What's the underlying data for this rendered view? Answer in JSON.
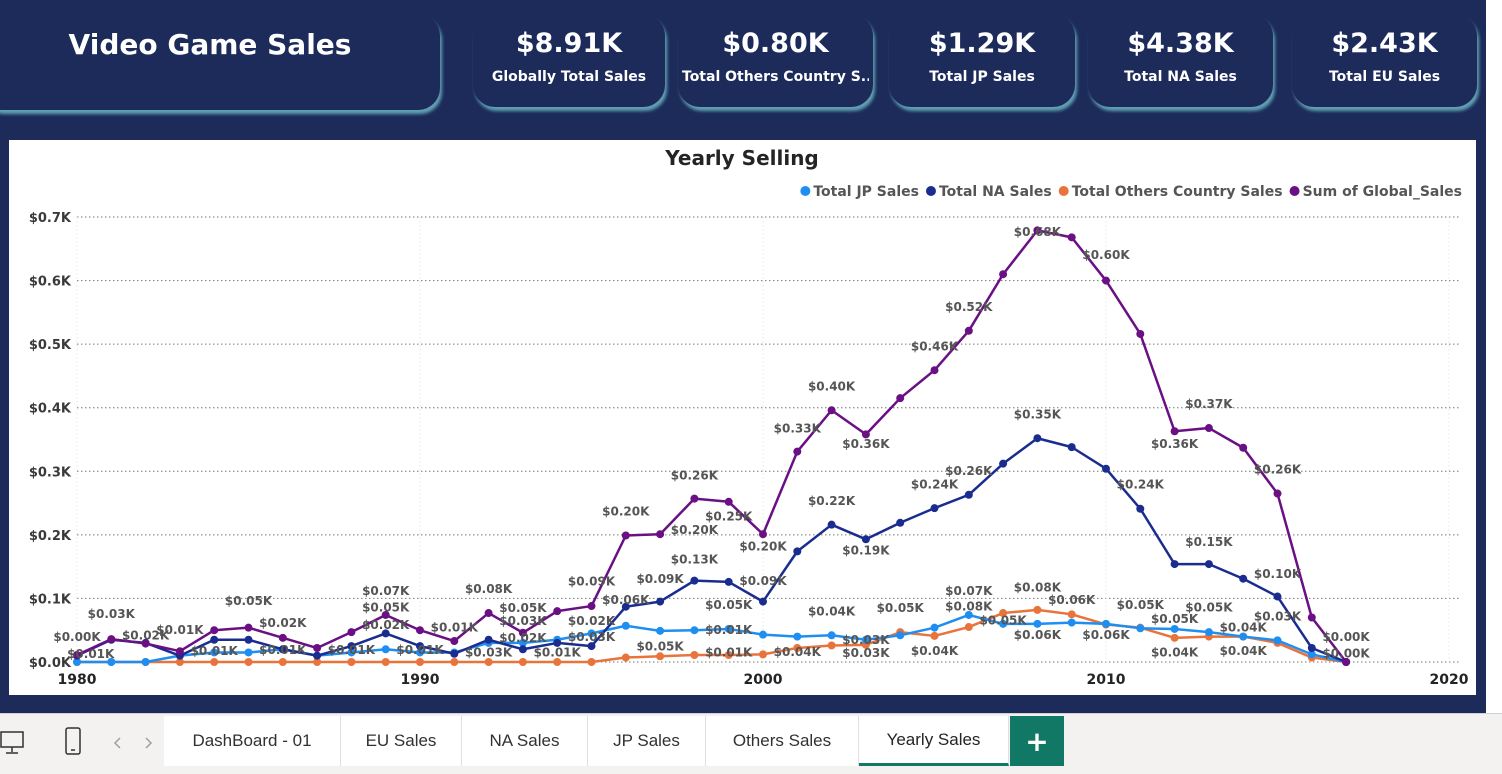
{
  "dashboard": {
    "title": "Video Game Sales",
    "kpis": [
      {
        "value": "$8.91K",
        "label": "Globally Total Sales"
      },
      {
        "value": "$0.80K",
        "label": "Total Others Country S..."
      },
      {
        "value": "$1.29K",
        "label": "Total JP Sales"
      },
      {
        "value": "$4.38K",
        "label": "Total NA Sales"
      },
      {
        "value": "$2.43K",
        "label": "Total EU Sales"
      }
    ]
  },
  "tabs": {
    "items": [
      "DashBoard - 01",
      "EU Sales",
      "NA Sales",
      "JP Sales",
      "Others Sales",
      "Yearly Sales"
    ],
    "active": "Yearly Sales",
    "add_label": "+"
  },
  "colors": {
    "jp": "#1f8ef1",
    "na": "#1a2d8f",
    "others": "#e8743b",
    "global": "#6a0f84"
  },
  "chart_data": {
    "type": "line",
    "title": "Yearly Selling",
    "xlabel": "",
    "ylabel": "",
    "xlim": [
      1980,
      2020
    ],
    "ylim": [
      0,
      0.7
    ],
    "x_ticks": [
      1980,
      1990,
      2000,
      2010,
      2020
    ],
    "y_ticks": [
      "$0.0K",
      "$0.1K",
      "$0.2K",
      "$0.3K",
      "$0.4K",
      "$0.5K",
      "$0.6K",
      "$0.7K"
    ],
    "legend_position": "top-right",
    "grid": true,
    "x": [
      1980,
      1981,
      1982,
      1983,
      1984,
      1985,
      1986,
      1987,
      1988,
      1989,
      1990,
      1991,
      1992,
      1993,
      1994,
      1995,
      1996,
      1997,
      1998,
      1999,
      2000,
      2001,
      2002,
      2003,
      2004,
      2005,
      2006,
      2007,
      2008,
      2009,
      2010,
      2011,
      2012,
      2013,
      2014,
      2015,
      2016,
      2017
    ],
    "series": [
      {
        "name": "Total JP Sales",
        "key": "jp",
        "values": [
          0.0,
          0.0,
          0.0,
          0.01,
          0.015,
          0.015,
          0.02,
          0.01,
          0.015,
          0.02,
          0.015,
          0.015,
          0.03,
          0.03,
          0.035,
          0.045,
          0.057,
          0.049,
          0.05,
          0.052,
          0.043,
          0.04,
          0.042,
          0.035,
          0.042,
          0.054,
          0.074,
          0.06,
          0.06,
          0.062,
          0.06,
          0.053,
          0.052,
          0.047,
          0.04,
          0.034,
          0.012,
          0.0
        ]
      },
      {
        "name": "Total NA Sales",
        "key": "na",
        "values": [
          0.01,
          0.035,
          0.03,
          0.01,
          0.035,
          0.035,
          0.02,
          0.01,
          0.025,
          0.045,
          0.025,
          0.013,
          0.035,
          0.02,
          0.03,
          0.025,
          0.087,
          0.095,
          0.128,
          0.126,
          0.095,
          0.174,
          0.216,
          0.193,
          0.219,
          0.242,
          0.263,
          0.312,
          0.352,
          0.338,
          0.304,
          0.241,
          0.154,
          0.154,
          0.131,
          0.103,
          0.022,
          0.0
        ]
      },
      {
        "name": "Total Others Country Sales",
        "key": "others",
        "values": [
          0.0,
          0.0,
          0.0,
          0.0,
          0.0,
          0.0,
          0.0,
          0.0,
          0.0,
          0.0,
          0.0,
          0.0,
          0.0,
          0.0,
          0.0,
          0.0,
          0.007,
          0.009,
          0.011,
          0.011,
          0.012,
          0.022,
          0.026,
          0.027,
          0.047,
          0.041,
          0.055,
          0.077,
          0.082,
          0.075,
          0.059,
          0.054,
          0.038,
          0.04,
          0.04,
          0.03,
          0.007,
          0.0
        ]
      },
      {
        "name": "Sum of Global_Sales",
        "key": "global",
        "values": [
          0.011,
          0.036,
          0.029,
          0.017,
          0.05,
          0.054,
          0.038,
          0.022,
          0.047,
          0.074,
          0.05,
          0.033,
          0.077,
          0.046,
          0.08,
          0.088,
          0.199,
          0.201,
          0.257,
          0.252,
          0.201,
          0.331,
          0.396,
          0.358,
          0.415,
          0.459,
          0.521,
          0.61,
          0.679,
          0.668,
          0.6,
          0.516,
          0.363,
          0.368,
          0.337,
          0.265,
          0.07,
          0.0
        ]
      }
    ],
    "data_labels": [
      {
        "x": 1980,
        "y": 0.027,
        "text": "$0.00K"
      },
      {
        "x": 1980.4,
        "y": 0.0,
        "text": "$0.01K"
      },
      {
        "x": 1981,
        "y": 0.063,
        "text": "$0.03K"
      },
      {
        "x": 1982,
        "y": 0.029,
        "text": "$0.02K"
      },
      {
        "x": 1983,
        "y": 0.038,
        "text": "$0.01K"
      },
      {
        "x": 1984,
        "y": 0.005,
        "text": "$0.01K"
      },
      {
        "x": 1985,
        "y": 0.083,
        "text": "$0.05K"
      },
      {
        "x": 1986,
        "y": 0.049,
        "text": "$0.02K"
      },
      {
        "x": 1986,
        "y": 0.006,
        "text": "$0.01K"
      },
      {
        "x": 1988,
        "y": 0.006,
        "text": "$0.01K"
      },
      {
        "x": 1989,
        "y": 0.099,
        "text": "$0.07K"
      },
      {
        "x": 1989,
        "y": 0.073,
        "text": "$0.05K"
      },
      {
        "x": 1989,
        "y": 0.046,
        "text": "$0.02K"
      },
      {
        "x": 1990,
        "y": 0.0065,
        "text": "$0.01K"
      },
      {
        "x": 1991,
        "y": 0.042,
        "text": "$0.01K"
      },
      {
        "x": 1992,
        "y": 0.102,
        "text": "$0.08K"
      },
      {
        "x": 1992,
        "y": 0.002,
        "text": "$0.03K"
      },
      {
        "x": 1993,
        "y": 0.072,
        "text": "$0.05K"
      },
      {
        "x": 1993,
        "y": 0.052,
        "text": "$0.03K"
      },
      {
        "x": 1993,
        "y": 0.025,
        "text": "$0.02K"
      },
      {
        "x": 1994,
        "y": 0.0025,
        "text": "$0.01K"
      },
      {
        "x": 1995,
        "y": 0.114,
        "text": "$0.09K"
      },
      {
        "x": 1995,
        "y": 0.052,
        "text": "$0.02K"
      },
      {
        "x": 1995,
        "y": 0.027,
        "text": "$0.03K"
      },
      {
        "x": 1996,
        "y": 0.224,
        "text": "$0.20K"
      },
      {
        "x": 1996,
        "y": 0.085,
        "text": "$0.06K"
      },
      {
        "x": 1997,
        "y": 0.118,
        "text": "$0.09K"
      },
      {
        "x": 1997,
        "y": 0.012,
        "text": "$0.05K"
      },
      {
        "x": 1998,
        "y": 0.281,
        "text": "$0.26K"
      },
      {
        "x": 1998,
        "y": 0.195,
        "text": "$0.20K"
      },
      {
        "x": 1998,
        "y": 0.149,
        "text": "$0.13K"
      },
      {
        "x": 1999,
        "y": 0.216,
        "text": "$0.25K"
      },
      {
        "x": 1999,
        "y": 0.077,
        "text": "$0.05K"
      },
      {
        "x": 1999,
        "y": 0.038,
        "text": "$0.01K"
      },
      {
        "x": 1999,
        "y": 0.0025,
        "text": "$0.01K"
      },
      {
        "x": 2000,
        "y": 0.169,
        "text": "$0.20K"
      },
      {
        "x": 2000,
        "y": 0.115,
        "text": "$0.09K"
      },
      {
        "x": 2001,
        "y": 0.355,
        "text": "$0.33K"
      },
      {
        "x": 2001,
        "y": 0.003,
        "text": "$0.04K"
      },
      {
        "x": 2002,
        "y": 0.421,
        "text": "$0.40K"
      },
      {
        "x": 2002,
        "y": 0.241,
        "text": "$0.22K"
      },
      {
        "x": 2002,
        "y": 0.067,
        "text": "$0.04K"
      },
      {
        "x": 2003,
        "y": 0.33,
        "text": "$0.36K"
      },
      {
        "x": 2003,
        "y": 0.163,
        "text": "$0.19K"
      },
      {
        "x": 2003,
        "y": 0.022,
        "text": "$0.03K"
      },
      {
        "x": 2003,
        "y": 0.0015,
        "text": "$0.03K"
      },
      {
        "x": 2004,
        "y": 0.072,
        "text": "$0.05K"
      },
      {
        "x": 2005,
        "y": 0.484,
        "text": "$0.46K"
      },
      {
        "x": 2005,
        "y": 0.267,
        "text": "$0.24K"
      },
      {
        "x": 2005,
        "y": 0.005,
        "text": "$0.04K"
      },
      {
        "x": 2006,
        "y": 0.546,
        "text": "$0.52K"
      },
      {
        "x": 2006,
        "y": 0.288,
        "text": "$0.26K"
      },
      {
        "x": 2006,
        "y": 0.099,
        "text": "$0.07K"
      },
      {
        "x": 2006,
        "y": 0.075,
        "text": "$0.08K"
      },
      {
        "x": 2007,
        "y": 0.053,
        "text": "$0.05K"
      },
      {
        "x": 2008,
        "y": 0.664,
        "text": "$0.68K"
      },
      {
        "x": 2008,
        "y": 0.377,
        "text": "$0.35K"
      },
      {
        "x": 2008,
        "y": 0.105,
        "text": "$0.08K"
      },
      {
        "x": 2008,
        "y": 0.03,
        "text": "$0.06K"
      },
      {
        "x": 2009,
        "y": 0.085,
        "text": "$0.06K"
      },
      {
        "x": 2010,
        "y": 0.628,
        "text": "$0.60K"
      },
      {
        "x": 2010,
        "y": 0.03,
        "text": "$0.06K"
      },
      {
        "x": 2011,
        "y": 0.267,
        "text": "$0.24K"
      },
      {
        "x": 2011,
        "y": 0.077,
        "text": "$0.05K"
      },
      {
        "x": 2012,
        "y": 0.33,
        "text": "$0.36K"
      },
      {
        "x": 2012,
        "y": 0.055,
        "text": "$0.05K"
      },
      {
        "x": 2012,
        "y": 0.0025,
        "text": "$0.04K"
      },
      {
        "x": 2013,
        "y": 0.393,
        "text": "$0.37K"
      },
      {
        "x": 2013,
        "y": 0.176,
        "text": "$0.15K"
      },
      {
        "x": 2013,
        "y": 0.073,
        "text": "$0.05K"
      },
      {
        "x": 2014,
        "y": 0.042,
        "text": "$0.04K"
      },
      {
        "x": 2014,
        "y": 0.005,
        "text": "$0.04K"
      },
      {
        "x": 2015,
        "y": 0.29,
        "text": "$0.26K"
      },
      {
        "x": 2015,
        "y": 0.126,
        "text": "$0.10K"
      },
      {
        "x": 2015,
        "y": 0.059,
        "text": "$0.03K"
      },
      {
        "x": 2017,
        "y": 0.027,
        "text": "$0.00K"
      },
      {
        "x": 2017,
        "y": 0.001,
        "text": "$0.00K"
      }
    ]
  }
}
